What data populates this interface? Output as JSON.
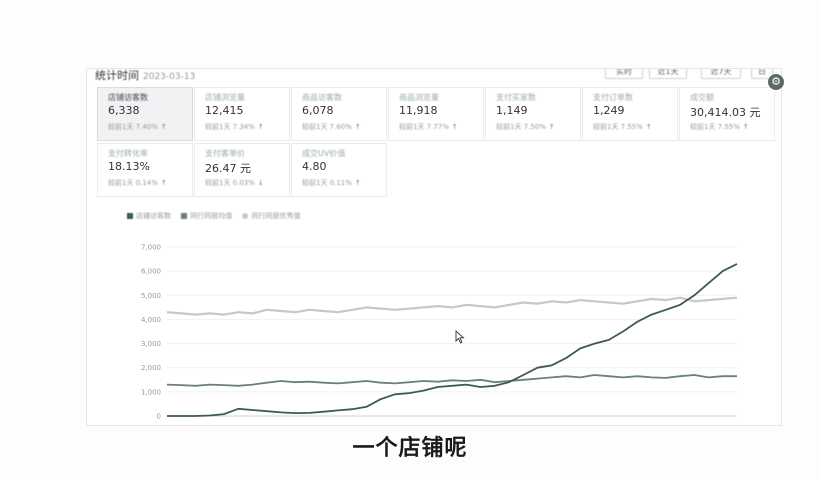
{
  "panel": {
    "title": "统计时间",
    "date_text": "2023-03-13",
    "buttons": [
      "实时",
      "近1天",
      "近7天",
      "日"
    ]
  },
  "settings_icon": "gear-icon",
  "metrics": [
    {
      "label": "店铺访客数",
      "value": "6,338",
      "sub": "较前1天 7.40%",
      "trend": "up"
    },
    {
      "label": "店铺浏览量",
      "value": "12,415",
      "sub": "较前1天 7.34%",
      "trend": "up"
    },
    {
      "label": "商品访客数",
      "value": "6,078",
      "sub": "较前1天 7.60%",
      "trend": "up"
    },
    {
      "label": "商品浏览量",
      "value": "11,918",
      "sub": "较前1天 7.77%",
      "trend": "up"
    },
    {
      "label": "支付买家数",
      "value": "1,149",
      "sub": "较前1天 7.50%",
      "trend": "up"
    },
    {
      "label": "支付订单数",
      "value": "1,249",
      "sub": "较前1天 7.55%",
      "trend": "up"
    },
    {
      "label": "成交额",
      "value": "30,414.03 元",
      "sub": "较前1天 7.55%",
      "trend": "up"
    },
    {
      "label": "支付转化率",
      "value": "18.13%",
      "sub": "较前1天 0.14%",
      "trend": "up"
    },
    {
      "label": "支付客单价",
      "value": "26.47 元",
      "sub": "较前1天 0.03%",
      "trend": "down"
    },
    {
      "label": "成交UV价值",
      "value": "4.80",
      "sub": "较前1天 0.11%",
      "trend": "up"
    }
  ],
  "arrows": {
    "up": "↑",
    "down": "↓"
  },
  "legend": [
    {
      "label": "店铺访客数",
      "color": "#3d5a55"
    },
    {
      "label": "同行同层均值",
      "color": "#6b7f7b"
    },
    {
      "label": "同行同层优秀值",
      "color": "#c7c7c7"
    }
  ],
  "chart_data": {
    "type": "line",
    "ylim": [
      0,
      7000
    ],
    "y_ticks": [
      "0",
      "1,000",
      "2,000",
      "3,000",
      "4,000",
      "5,000",
      "6,000",
      "7,000"
    ],
    "series": [
      {
        "name": "店铺访客数",
        "color": "#3d5a55",
        "values": [
          0,
          0,
          0,
          20,
          80,
          300,
          250,
          200,
          150,
          120,
          130,
          180,
          230,
          280,
          380,
          700,
          900,
          950,
          1050,
          1200,
          1250,
          1300,
          1200,
          1250,
          1400,
          1700,
          2000,
          2100,
          2400,
          2800,
          3000,
          3150,
          3500,
          3900,
          4200,
          4400,
          4600,
          5000,
          5500,
          6000,
          6300
        ]
      },
      {
        "name": "同行同层均值",
        "color": "#6b7f7b",
        "values": [
          1300,
          1280,
          1250,
          1300,
          1280,
          1250,
          1300,
          1380,
          1450,
          1400,
          1420,
          1380,
          1350,
          1400,
          1450,
          1380,
          1350,
          1400,
          1450,
          1420,
          1480,
          1450,
          1500,
          1400,
          1450,
          1500,
          1550,
          1600,
          1650,
          1600,
          1700,
          1650,
          1600,
          1650,
          1600,
          1580,
          1650,
          1700,
          1600,
          1650,
          1650
        ]
      },
      {
        "name": "同行同层优秀值",
        "color": "#c7c7c7",
        "values": [
          4300,
          4250,
          4200,
          4250,
          4200,
          4300,
          4250,
          4400,
          4350,
          4300,
          4400,
          4350,
          4300,
          4400,
          4500,
          4450,
          4400,
          4450,
          4500,
          4550,
          4500,
          4600,
          4550,
          4500,
          4600,
          4700,
          4650,
          4750,
          4700,
          4800,
          4750,
          4700,
          4650,
          4750,
          4850,
          4800,
          4900,
          4750,
          4800,
          4850,
          4900
        ]
      }
    ]
  },
  "subtitle": "一个店铺呢"
}
